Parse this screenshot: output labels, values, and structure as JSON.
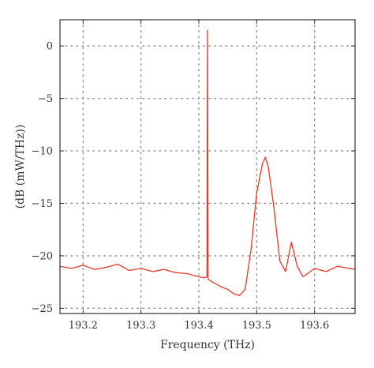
{
  "chart_data": {
    "type": "line",
    "title": "",
    "xlabel": "Frequency (THz)",
    "ylabel": "(dB (mW/THz))",
    "xlim": [
      193.16,
      193.67
    ],
    "ylim": [
      -25.5,
      2.5
    ],
    "x_ticks": [
      193.2,
      193.3,
      193.4,
      193.5,
      193.6
    ],
    "y_ticks": [
      0,
      -5,
      -10,
      -15,
      -20,
      -25
    ],
    "x_tick_labels": [
      "193.2",
      "193.3",
      "193.4",
      "193.5",
      "193.6"
    ],
    "y_tick_labels": [
      "0",
      "−5",
      "−10",
      "−15",
      "−20",
      "−25"
    ],
    "grid": true,
    "grid_style": "dotted",
    "colors": {
      "series": "#e8382a",
      "axis": "#333333",
      "grid": "#888888"
    },
    "series": [
      {
        "points": [
          [
            193.16,
            -21.0
          ],
          [
            193.18,
            -21.2
          ],
          [
            193.2,
            -20.9
          ],
          [
            193.22,
            -21.3
          ],
          [
            193.24,
            -21.1
          ],
          [
            193.26,
            -20.8
          ],
          [
            193.28,
            -21.4
          ],
          [
            193.3,
            -21.2
          ],
          [
            193.32,
            -21.5
          ],
          [
            193.34,
            -21.3
          ],
          [
            193.36,
            -21.6
          ],
          [
            193.38,
            -21.7
          ],
          [
            193.4,
            -22.0
          ],
          [
            193.41,
            -22.1
          ],
          [
            193.414,
            -22.0
          ],
          [
            193.415,
            1.5
          ],
          [
            193.416,
            -22.2
          ],
          [
            193.42,
            -22.4
          ],
          [
            193.44,
            -23.0
          ],
          [
            193.45,
            -23.2
          ],
          [
            193.46,
            -23.6
          ],
          [
            193.47,
            -23.8
          ],
          [
            193.48,
            -23.2
          ],
          [
            193.49,
            -19.5
          ],
          [
            193.5,
            -14.0
          ],
          [
            193.51,
            -11.2
          ],
          [
            193.515,
            -10.6
          ],
          [
            193.52,
            -11.5
          ],
          [
            193.53,
            -15.5
          ],
          [
            193.54,
            -20.5
          ],
          [
            193.55,
            -21.5
          ],
          [
            193.56,
            -18.7
          ],
          [
            193.57,
            -21.0
          ],
          [
            193.58,
            -22.0
          ],
          [
            193.6,
            -21.2
          ],
          [
            193.62,
            -21.5
          ],
          [
            193.64,
            -21.0
          ],
          [
            193.67,
            -21.3
          ]
        ]
      }
    ]
  }
}
